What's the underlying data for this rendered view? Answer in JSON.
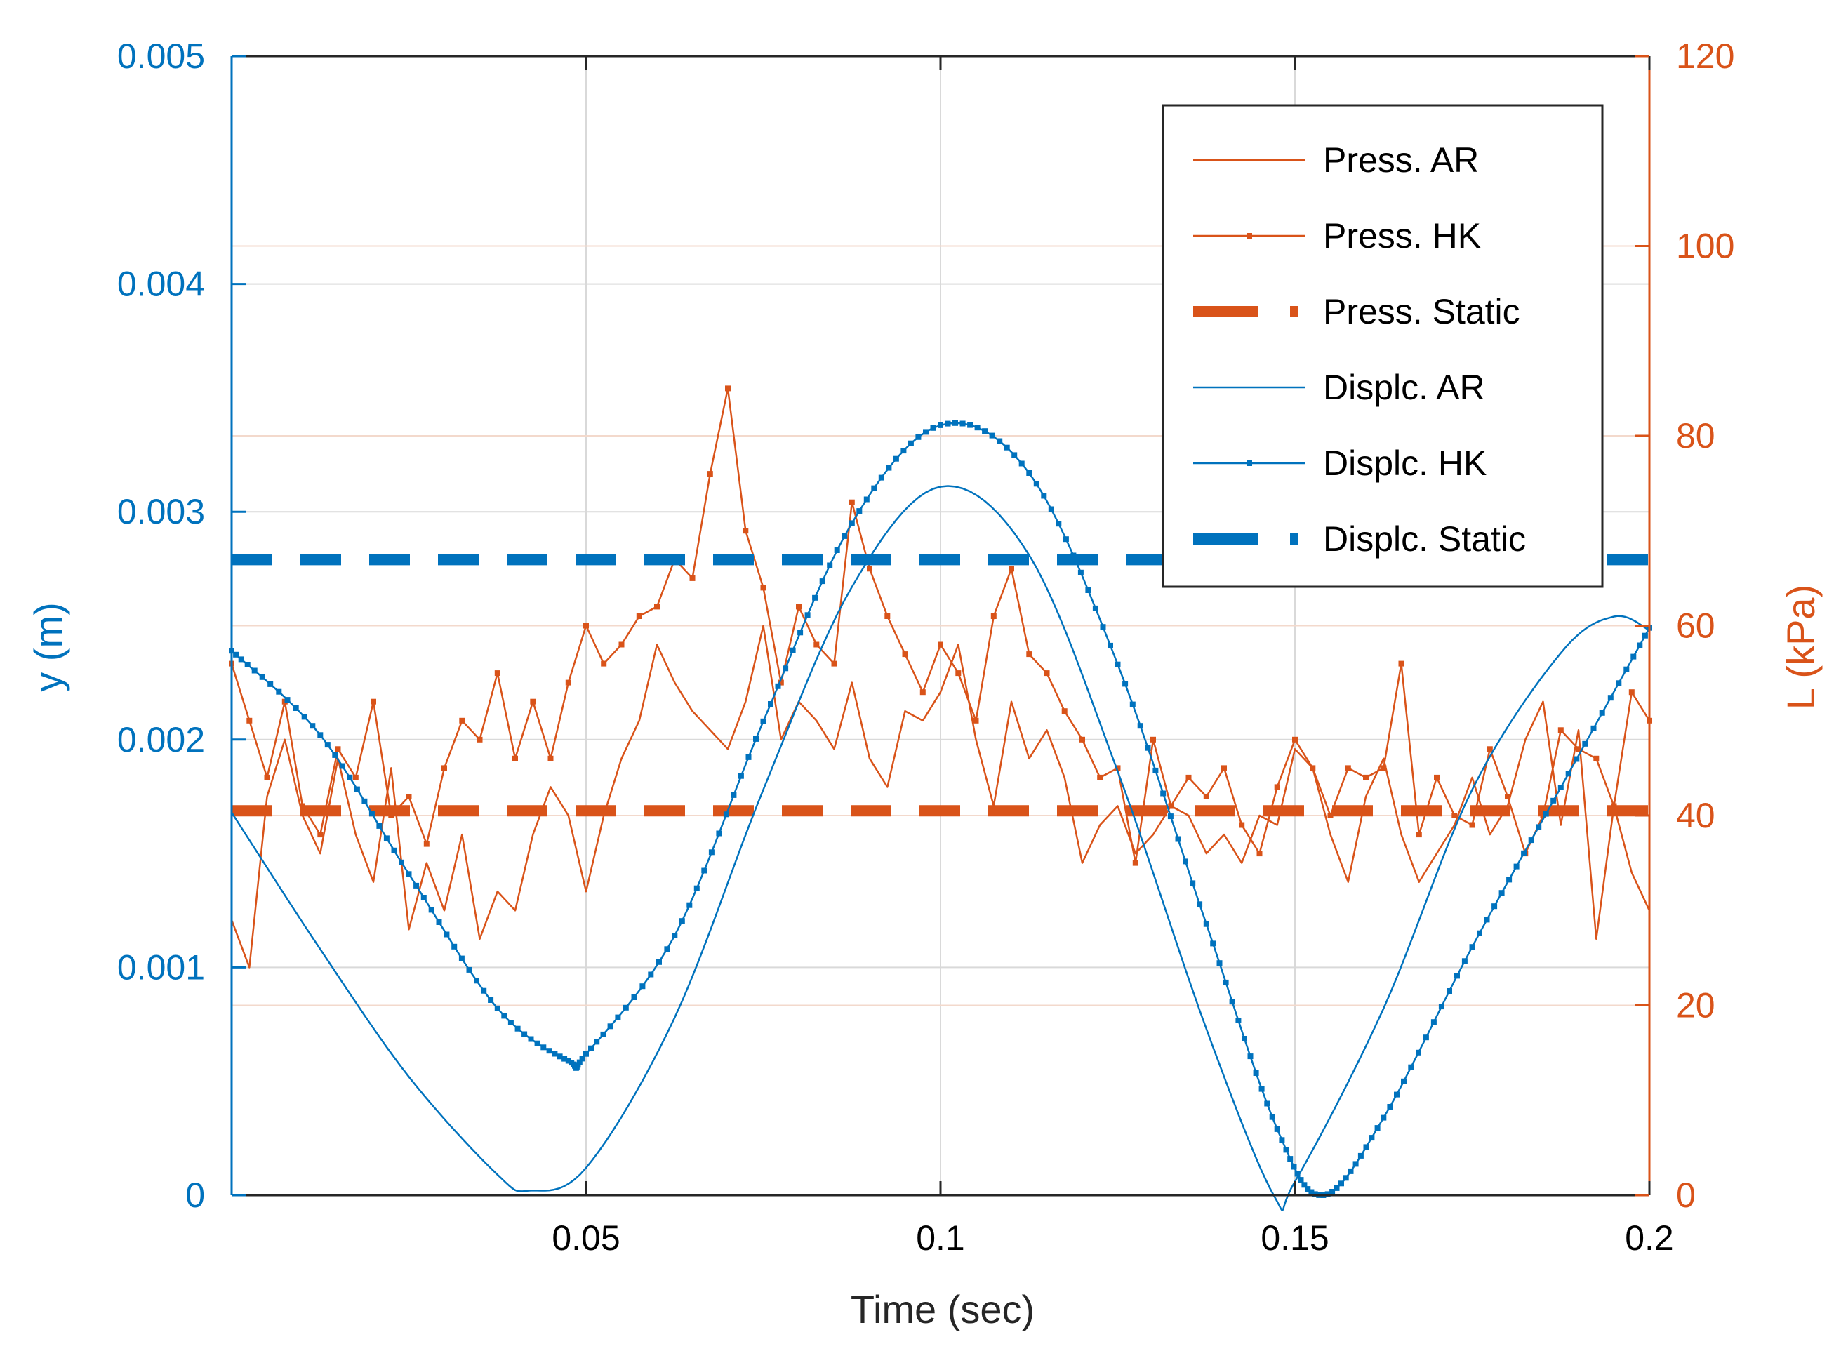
{
  "chart_data": {
    "type": "line",
    "title": "",
    "xlabel": "Time (sec)",
    "ylabel_left": "y (m)",
    "ylabel_right": "L (kPa)",
    "xlim": [
      0,
      0.2
    ],
    "ylim_left": [
      0,
      0.005
    ],
    "ylim_right": [
      0,
      120
    ],
    "grid": true,
    "legend_position": "top-right",
    "x_ticks": [
      "0.05",
      "0.1",
      "0.15",
      "0.2"
    ],
    "x_tick_values": [
      0.05,
      0.1,
      0.15,
      0.2
    ],
    "y_left_ticks": [
      "0",
      "0.001",
      "0.002",
      "0.003",
      "0.004",
      "0.005"
    ],
    "y_left_tick_values": [
      0,
      0.001,
      0.002,
      0.003,
      0.004,
      0.005
    ],
    "y_right_ticks": [
      "0",
      "20",
      "40",
      "60",
      "80",
      "100",
      "120"
    ],
    "y_right_tick_values": [
      0,
      20,
      40,
      60,
      80,
      100,
      120
    ],
    "colors": {
      "blue": "#0072BD",
      "orange": "#D95319",
      "grid": "#d9d9d9",
      "grid_right": "#f3d9cc"
    },
    "series": [
      {
        "name": "Press. AR",
        "axis": "right",
        "color": "#D95319",
        "style": "thin",
        "x": [
          0,
          0.0025,
          0.005,
          0.0075,
          0.01,
          0.0125,
          0.015,
          0.0175,
          0.02,
          0.0225,
          0.025,
          0.0275,
          0.03,
          0.0325,
          0.035,
          0.0375,
          0.04,
          0.0425,
          0.045,
          0.0475,
          0.05,
          0.0525,
          0.055,
          0.0575,
          0.06,
          0.0625,
          0.065,
          0.0675,
          0.07,
          0.0725,
          0.075,
          0.0775,
          0.08,
          0.0825,
          0.085,
          0.0875,
          0.09,
          0.0925,
          0.095,
          0.0975,
          0.1,
          0.1025,
          0.105,
          0.1075,
          0.11,
          0.1125,
          0.115,
          0.1175,
          0.12,
          0.1225,
          0.125,
          0.1275,
          0.13,
          0.1325,
          0.135,
          0.1375,
          0.14,
          0.1425,
          0.145,
          0.1475,
          0.15,
          0.1525,
          0.155,
          0.1575,
          0.16,
          0.1625,
          0.165,
          0.1675,
          0.17,
          0.1725,
          0.175,
          0.1775,
          0.18,
          0.1825,
          0.185,
          0.1875,
          0.19,
          0.1925,
          0.195,
          0.1975,
          0.2
        ],
        "y": [
          29,
          24,
          42,
          48,
          40,
          36,
          46,
          38,
          33,
          45,
          28,
          35,
          30,
          38,
          27,
          32,
          30,
          38,
          43,
          40,
          32,
          40,
          46,
          50,
          58,
          54,
          51,
          49,
          47,
          52,
          60,
          48,
          52,
          50,
          47,
          54,
          46,
          43,
          51,
          50,
          53,
          58,
          48,
          41,
          52,
          46,
          49,
          44,
          35,
          39,
          41,
          36,
          38,
          41,
          40,
          36,
          38,
          35,
          40,
          39,
          47,
          45,
          38,
          33,
          42,
          46,
          38,
          33,
          36,
          39,
          44,
          38,
          41,
          48,
          52,
          39,
          49,
          27,
          41,
          34,
          30
        ]
      },
      {
        "name": "Press. HK",
        "axis": "right",
        "color": "#D95319",
        "style": "thin-dotted-marker",
        "x": [
          0,
          0.0025,
          0.005,
          0.0075,
          0.01,
          0.0125,
          0.015,
          0.0175,
          0.02,
          0.0225,
          0.025,
          0.0275,
          0.03,
          0.0325,
          0.035,
          0.0375,
          0.04,
          0.0425,
          0.045,
          0.0475,
          0.05,
          0.0525,
          0.055,
          0.0575,
          0.06,
          0.0625,
          0.065,
          0.0675,
          0.07,
          0.0725,
          0.075,
          0.0775,
          0.08,
          0.0825,
          0.085,
          0.0875,
          0.09,
          0.0925,
          0.095,
          0.0975,
          0.1,
          0.1025,
          0.105,
          0.1075,
          0.11,
          0.1125,
          0.115,
          0.1175,
          0.12,
          0.1225,
          0.125,
          0.1275,
          0.13,
          0.1325,
          0.135,
          0.1375,
          0.14,
          0.1425,
          0.145,
          0.1475,
          0.15,
          0.1525,
          0.155,
          0.1575,
          0.16,
          0.1625,
          0.165,
          0.1675,
          0.17,
          0.1725,
          0.175,
          0.1775,
          0.18,
          0.1825,
          0.185,
          0.1875,
          0.19,
          0.1925,
          0.195,
          0.1975,
          0.2
        ],
        "y": [
          56,
          50,
          44,
          52,
          41,
          38,
          47,
          44,
          52,
          40,
          42,
          37,
          45,
          50,
          48,
          55,
          46,
          52,
          46,
          54,
          60,
          56,
          58,
          61,
          62,
          67,
          65,
          76,
          85,
          70,
          64,
          54,
          62,
          58,
          56,
          73,
          66,
          61,
          57,
          53,
          58,
          55,
          50,
          61,
          66,
          57,
          55,
          51,
          48,
          44,
          45,
          35,
          48,
          41,
          44,
          42,
          45,
          39,
          36,
          43,
          48,
          45,
          40,
          45,
          44,
          45,
          56,
          38,
          44,
          40,
          39,
          47,
          42,
          36,
          40,
          49,
          47,
          46,
          41,
          53,
          50
        ]
      },
      {
        "name": "Press. Static",
        "axis": "right",
        "color": "#D95319",
        "style": "thick-dashed",
        "x": [
          0,
          0.2
        ],
        "y": [
          40.5,
          40.5
        ]
      },
      {
        "name": "Displc. AR",
        "axis": "left",
        "color": "#0072BD",
        "style": "thin",
        "x": [
          0,
          0.0125,
          0.025,
          0.0375,
          0.042,
          0.05,
          0.0625,
          0.075,
          0.0875,
          0.1,
          0.1125,
          0.125,
          0.1375,
          0.147,
          0.15,
          0.1625,
          0.175,
          0.1875,
          0.195,
          0.2
        ],
        "y": [
          0.00168,
          0.00108,
          0.00052,
          9e-05,
          2e-05,
          0.00012,
          0.00078,
          0.00178,
          0.00267,
          0.00311,
          0.00281,
          0.00186,
          0.00073,
          0.0,
          6e-05,
          0.00082,
          0.00178,
          0.00238,
          0.00254,
          0.00248
        ]
      },
      {
        "name": "Displc. HK",
        "axis": "left",
        "color": "#0072BD",
        "style": "thin-dotted-marker",
        "x": [
          0,
          0.0125,
          0.025,
          0.0375,
          0.0475,
          0.05,
          0.0625,
          0.075,
          0.0875,
          0.1,
          0.1125,
          0.125,
          0.1375,
          0.1475,
          0.154,
          0.1625,
          0.175,
          0.1875,
          0.2
        ],
        "y": [
          0.00239,
          0.00202,
          0.00141,
          0.00082,
          0.00059,
          0.00062,
          0.00114,
          0.00208,
          0.00295,
          0.00338,
          0.00317,
          0.00233,
          0.00119,
          0.00029,
          0.0,
          0.00034,
          0.00109,
          0.00179,
          0.00249
        ]
      },
      {
        "name": "Displc. Static",
        "axis": "left",
        "color": "#0072BD",
        "style": "thick-dashed",
        "x": [
          0,
          0.2
        ],
        "y": [
          0.00279,
          0.00279
        ]
      }
    ]
  }
}
